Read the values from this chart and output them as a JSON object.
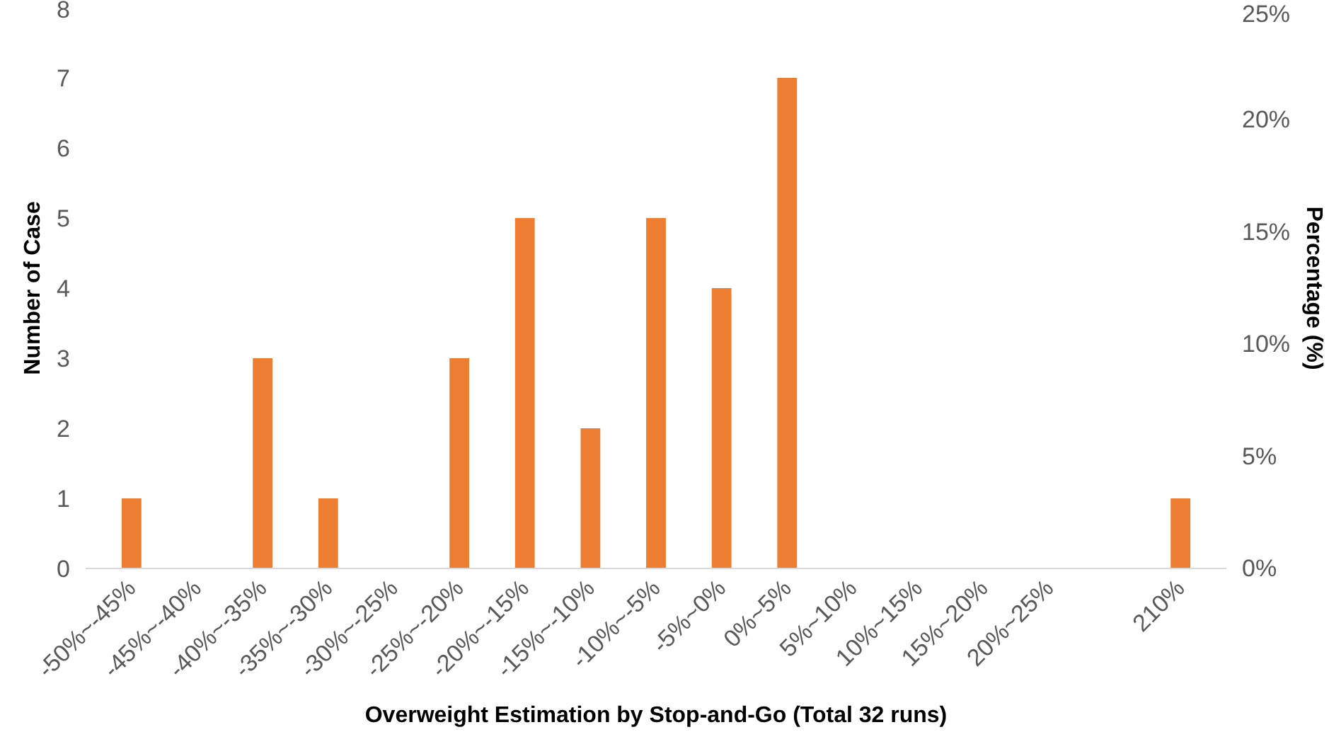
{
  "chart_data": {
    "type": "bar",
    "xlabel": "Overweight Estimation by Stop-and-Go (Total 32 runs)",
    "ylabel": "Number of Case",
    "y2label": "Percentage (%)",
    "categories": [
      "-50%~-45%",
      "-45%~-40%",
      "-40%~-35%",
      "-35%~-30%",
      "-30%~-25%",
      "-25%~-20%",
      "-20%~-15%",
      "-15%~-10%",
      "-10%~-5%",
      "-5%~0%",
      "0%~5%",
      "5%~10%",
      "10%~15%",
      "15%~20%",
      "20%~25%",
      null,
      "210%"
    ],
    "values": [
      1,
      0,
      3,
      1,
      0,
      3,
      5,
      2,
      5,
      4,
      7,
      0,
      0,
      0,
      0,
      0,
      1
    ],
    "color": "#ed7d31",
    "ylim": [
      0,
      8
    ],
    "yticks": [
      0,
      1,
      2,
      3,
      4,
      5,
      6,
      7,
      8
    ],
    "y2lim": [
      0,
      25
    ],
    "y2ticks": [
      {
        "value": 0,
        "label": "0%"
      },
      {
        "value": 5,
        "label": "5%"
      },
      {
        "value": 10,
        "label": "10%"
      },
      {
        "value": 15,
        "label": "15%"
      },
      {
        "value": 20,
        "label": "20%"
      },
      {
        "value": 25,
        "label": "25%"
      }
    ],
    "grid": false
  }
}
